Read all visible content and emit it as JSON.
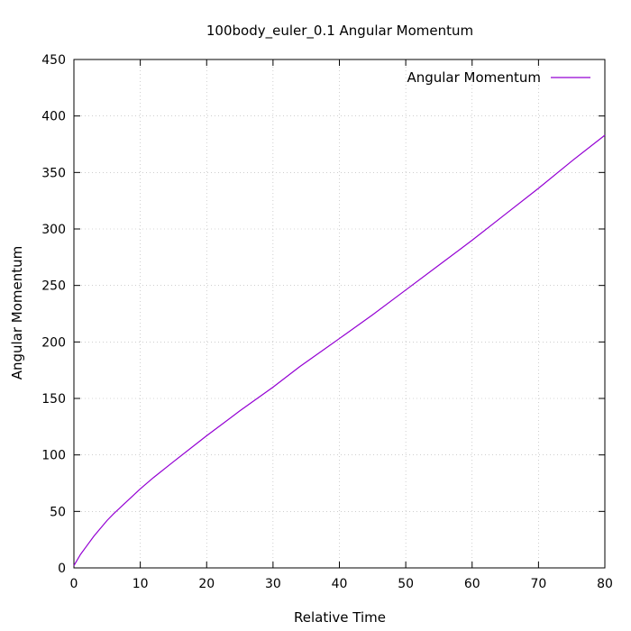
{
  "chart_data": {
    "type": "line",
    "title": "100body_euler_0.1 Angular Momentum",
    "xlabel": "Relative Time",
    "ylabel": "Angular Momentum",
    "xlim": [
      0,
      80
    ],
    "ylim": [
      0,
      450
    ],
    "xticks": [
      0,
      10,
      20,
      30,
      40,
      50,
      60,
      70,
      80
    ],
    "yticks": [
      0,
      50,
      100,
      150,
      200,
      250,
      300,
      350,
      400,
      450
    ],
    "grid": true,
    "legend_position": "top-right",
    "series": [
      {
        "name": "Angular Momentum",
        "color": "#9400d3",
        "x": [
          0,
          1,
          2,
          3,
          4,
          5,
          6,
          8,
          10,
          12,
          15,
          20,
          25,
          30,
          34,
          40,
          45,
          50,
          55,
          60,
          65,
          70,
          75,
          80
        ],
        "y": [
          2,
          12,
          20,
          28,
          35,
          42,
          48,
          59,
          70,
          80,
          94,
          117,
          139,
          160,
          178,
          203,
          224,
          246,
          268,
          290,
          313,
          336,
          360,
          383
        ]
      }
    ]
  }
}
